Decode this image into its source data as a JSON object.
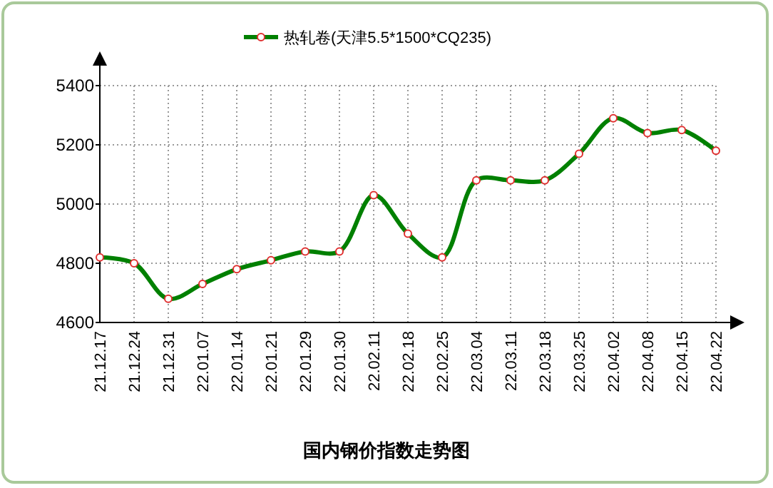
{
  "chart_data": {
    "type": "line",
    "title": "国内钢价指数走势图",
    "categories": [
      "21.12.17",
      "21.12.24",
      "21.12.31",
      "22.01.07",
      "22.01.14",
      "22.01.21",
      "22.01.29",
      "22.01.30",
      "22.02.11",
      "22.02.18",
      "22.02.25",
      "22.03.04",
      "22.03.11",
      "22.03.18",
      "22.03.25",
      "22.04.02",
      "22.04.08",
      "22.04.15",
      "22.04.22"
    ],
    "series": [
      {
        "name": "热轧卷(天津5.5*1500*CQ235)",
        "color": "#008000",
        "values": [
          4820,
          4800,
          4680,
          4730,
          4780,
          4810,
          4840,
          4840,
          5030,
          4900,
          4820,
          5080,
          5080,
          5080,
          5170,
          5290,
          5240,
          5250,
          5180
        ]
      }
    ],
    "ylim": [
      4600,
      5400
    ],
    "yticks": [
      4600,
      4800,
      5000,
      5200,
      5400
    ],
    "grid": true,
    "legend": "top",
    "marker": "circle",
    "line_style": "solid"
  }
}
